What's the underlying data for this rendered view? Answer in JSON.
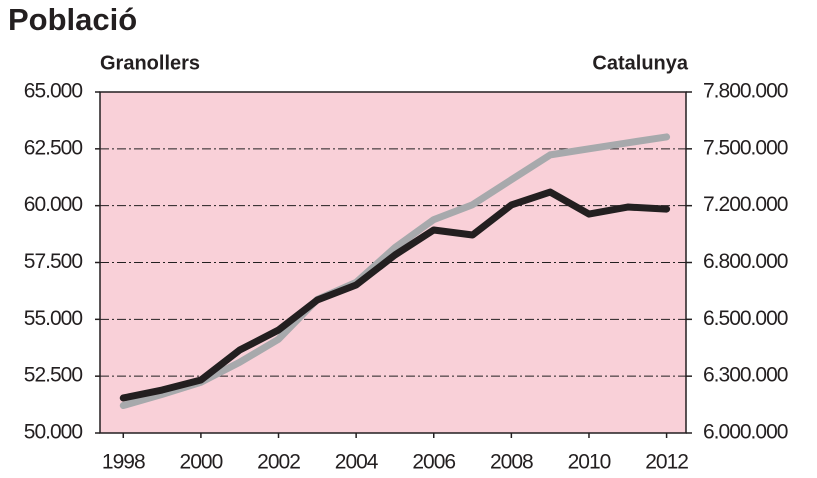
{
  "chart_data": {
    "type": "line",
    "title": "Població",
    "y_axis_label": "Granollers",
    "y2_axis_label": "Catalunya",
    "x": [
      1998,
      1999,
      2000,
      2001,
      2002,
      2003,
      2004,
      2005,
      2006,
      2007,
      2008,
      2009,
      2010,
      2011,
      2012
    ],
    "xlim": [
      1997.4,
      2012.5
    ],
    "xticks": [
      1998,
      2000,
      2002,
      2004,
      2006,
      2008,
      2010,
      2012
    ],
    "ylim": [
      50000,
      65000
    ],
    "yticks": [
      {
        "value": 50000,
        "label": "50.000"
      },
      {
        "value": 52500,
        "label": "52.500"
      },
      {
        "value": 55000,
        "label": "55.000"
      },
      {
        "value": 57500,
        "label": "57.500"
      },
      {
        "value": 60000,
        "label": "60.000"
      },
      {
        "value": 62500,
        "label": "62.500"
      },
      {
        "value": 65000,
        "label": "65.000"
      }
    ],
    "y2lim": [
      6000000,
      7800000
    ],
    "y2ticks": [
      {
        "value": 6000000,
        "label": "6.000.000"
      },
      {
        "value": 6300000,
        "label": "6.300.000"
      },
      {
        "value": 6500000,
        "label": "6.500.000"
      },
      {
        "value": 6800000,
        "label": "6.800.000"
      },
      {
        "value": 7200000,
        "label": "7.200.000"
      },
      {
        "value": 7500000,
        "label": "7.500.000"
      },
      {
        "value": 7800000,
        "label": "7.800.000"
      }
    ],
    "grid": true,
    "background": "#f9d0d8",
    "series": [
      {
        "name": "Granollers",
        "color": "#231f20",
        "values": [
          51540,
          51890,
          52330,
          53650,
          54530,
          55850,
          56510,
          57830,
          58930,
          58710,
          60030,
          60600,
          59630,
          59940,
          59850
        ]
      },
      {
        "name": "Catalunya",
        "color": "#a7a9ac",
        "axis": "y2",
        "values": [
          6145000,
          6204000,
          6268000,
          6349000,
          6430000,
          6605000,
          6695000,
          6905000,
          7102000,
          7205000,
          7337000,
          7468000,
          7500000,
          7532000,
          7563000
        ]
      }
    ]
  }
}
